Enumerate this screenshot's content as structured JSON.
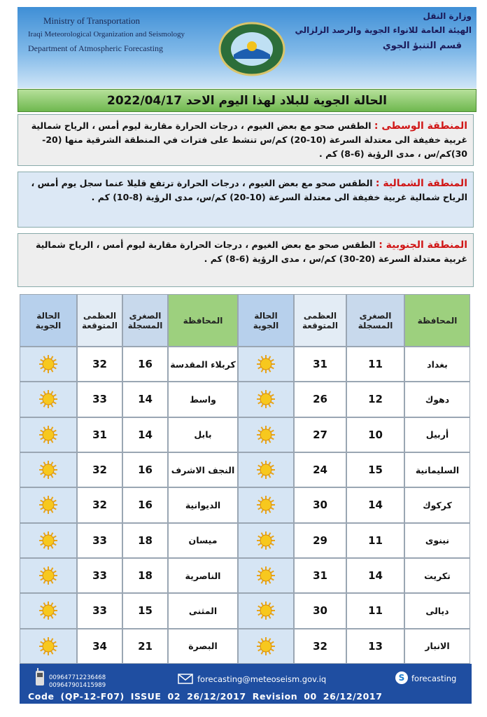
{
  "header": {
    "english": [
      "Ministry of Transportation",
      "Iraqi Meteorological Organization and Seismology",
      "Department of Atmospheric Forecasting"
    ],
    "arabic": [
      "وزارة النقل",
      "الهيئة العامة للانواء الجوية والرصد الزلزالي",
      "قسم التنبؤ الجوي"
    ]
  },
  "title": "الحالة الجوية للبلاد لهذا اليوم الاحد 2022/04/17",
  "regions": [
    {
      "label": "المنطقة الوسطى :",
      "text": "الطقس صحو مع بعض الغيوم ، درجات الحرارة مقاربة ليوم أمس ، الرياح شمالية غربية خفيفة الى معتدلة السرعة (10-20) كم/س تنشط على فترات في المنطقة الشرقية منها (20-30)كم/س ، مدى الرؤية (6-8) كم ."
    },
    {
      "label": "المنطقة الشمالية :",
      "text": "الطقس صحو مع بعض الغيوم ، درجات الحرارة ترتفع قليلا عنما سجل يوم أمس ، الرياح شمالية غربية خفيفة الى معتدلة السرعة (10-20) كم/س، مدى الرؤية (8-10) كم ."
    },
    {
      "label": "المنطقة الجنوبية :",
      "text": "الطقس صحو مع بعض الغيوم ، درجات الحرارة مقاربة ليوم أمس ، الرياح شمالية غربية معتدلة السرعة (20-30) كم/س ، مدى الرؤية (6-8) كم ."
    }
  ],
  "table": {
    "headers": [
      [
        "المحافظة",
        "الصغرى المسجلة",
        "العظمى المتوقعة",
        "الحالة الجوية"
      ],
      [
        "المحافظة",
        "الصغرى المسجلة",
        "العظمى المتوقعة",
        "الحالة الجوية"
      ]
    ],
    "rows": [
      [
        [
          "بغداد",
          11,
          31
        ],
        [
          "كربلاء المقدسة",
          16,
          32
        ]
      ],
      [
        [
          "دهوك",
          12,
          26
        ],
        [
          "واسط",
          14,
          33
        ]
      ],
      [
        [
          "أربيل",
          10,
          27
        ],
        [
          "بابل",
          14,
          31
        ]
      ],
      [
        [
          "السليمانية",
          15,
          24
        ],
        [
          "النجف الاشرف",
          16,
          32
        ]
      ],
      [
        [
          "كركوك",
          14,
          30
        ],
        [
          "الديوانية",
          16,
          32
        ]
      ],
      [
        [
          "نينوى",
          11,
          29
        ],
        [
          "ميسان",
          18,
          33
        ]
      ],
      [
        [
          "تكريت",
          14,
          31
        ],
        [
          "الناصرية",
          18,
          33
        ]
      ],
      [
        [
          "ديالى",
          11,
          30
        ],
        [
          "المثنى",
          15,
          33
        ]
      ],
      [
        [
          "الانبار",
          13,
          32
        ],
        [
          "البصرة",
          21,
          34
        ]
      ]
    ]
  },
  "footer": {
    "phones": [
      "009647712236468",
      "009647901415989"
    ],
    "email": "forecasting@meteoseism.gov.iq",
    "skype": "forecasting",
    "code": "Code (QP-12-F07) ISSUE 02 26/12/2017 Revision 00 26/12/2017"
  }
}
